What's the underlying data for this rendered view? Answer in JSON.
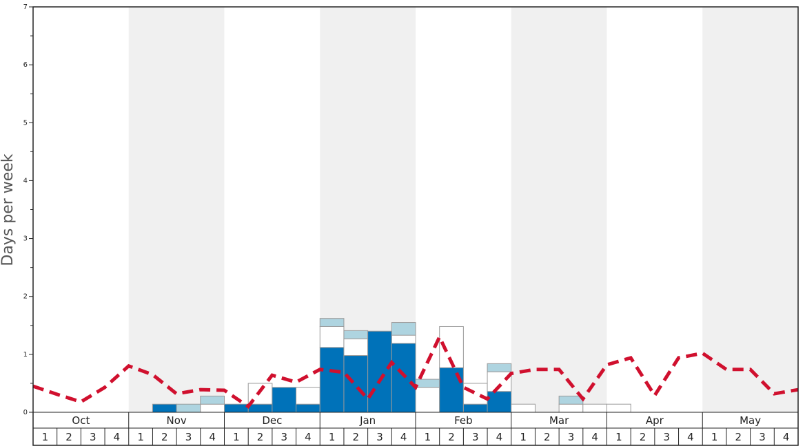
{
  "chart_data": {
    "type": "stacked_bar_line",
    "ylabel": "Days per week",
    "months": [
      "Oct",
      "Nov",
      "Dec",
      "Jan",
      "Feb",
      "Mar",
      "Apr",
      "May"
    ],
    "weeks": [
      "1",
      "2",
      "3",
      "4"
    ],
    "shaded_months": [
      false,
      true,
      false,
      true,
      false,
      true,
      false,
      true
    ],
    "ylim": [
      0,
      7
    ],
    "yticks": [
      0,
      1,
      2,
      3,
      4,
      5,
      6,
      7
    ],
    "yminorticks": [
      0.5,
      1.5,
      2.5,
      3.5,
      4.5,
      5.5,
      6.5
    ],
    "series": [
      {
        "color": "#0072b9",
        "values": [
          0,
          0,
          0,
          0,
          0,
          0.14,
          0,
          0,
          0.14,
          0.14,
          0.43,
          0.14,
          1.12,
          0.98,
          1.4,
          1.19,
          0,
          0.77,
          0.14,
          0.36,
          0,
          0,
          0,
          0,
          0,
          0,
          0,
          0,
          0,
          0,
          0,
          0
        ]
      },
      {
        "color": "#ffffff",
        "values": [
          0,
          0,
          0,
          0,
          0,
          0,
          0,
          0.14,
          0,
          0.36,
          0,
          0.29,
          0.36,
          0.29,
          0,
          0.14,
          0.43,
          0.71,
          0.36,
          0.34,
          0.14,
          0,
          0.14,
          0.14,
          0.14,
          0,
          0,
          0,
          0,
          0,
          0,
          0
        ]
      },
      {
        "color": "#aed4e0",
        "values": [
          0,
          0,
          0,
          0,
          0,
          0,
          0.14,
          0.14,
          0,
          0,
          0,
          0,
          0.14,
          0.14,
          0,
          0.22,
          0.14,
          0,
          0,
          0.14,
          0,
          0,
          0.14,
          0,
          0,
          0,
          0,
          0,
          0,
          0,
          0,
          0
        ]
      }
    ],
    "line": {
      "color": "#d0102e",
      "x": [
        0,
        1,
        2,
        3,
        4,
        5,
        6,
        7,
        8,
        9,
        10,
        11,
        12,
        13,
        14,
        15,
        16,
        17,
        18,
        19,
        20,
        21,
        22,
        23,
        24,
        25,
        26,
        27,
        28,
        29,
        30,
        31,
        32
      ],
      "values": [
        0.45,
        0.31,
        0.18,
        0.43,
        0.8,
        0.65,
        0.32,
        0.39,
        0.38,
        0.1,
        0.64,
        0.52,
        0.74,
        0.69,
        0.23,
        0.86,
        0.43,
        1.3,
        0.43,
        0.23,
        0.67,
        0.74,
        0.74,
        0.23,
        0.82,
        0.94,
        0.29,
        0.94,
        1.02,
        0.74,
        0.74,
        0.32,
        0.39
      ]
    }
  }
}
